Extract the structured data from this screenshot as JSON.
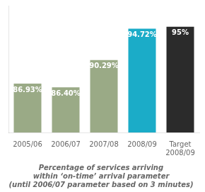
{
  "chart_data": {
    "type": "bar",
    "title": "Percentage of services arriving\nwithin ‘on-time’ arrival parameter\n(until 2006/07 parameter based on 3 minutes)",
    "categories": [
      "2005/06",
      "2006/07",
      "2007/08",
      "2008/09",
      "Target\n2008/09"
    ],
    "values": [
      86.93,
      86.4,
      90.29,
      94.72,
      95.0
    ],
    "value_labels": [
      "86.93%",
      "86.40%",
      "90.29%",
      "94.72%",
      "95%"
    ],
    "colors": [
      "#9aaa86",
      "#9aaa86",
      "#9aaa86",
      "#1bacc8",
      "#2b2b2b"
    ],
    "ylim": [
      80,
      98
    ],
    "grid": false,
    "data_labels": true,
    "tick_labels": "x"
  }
}
